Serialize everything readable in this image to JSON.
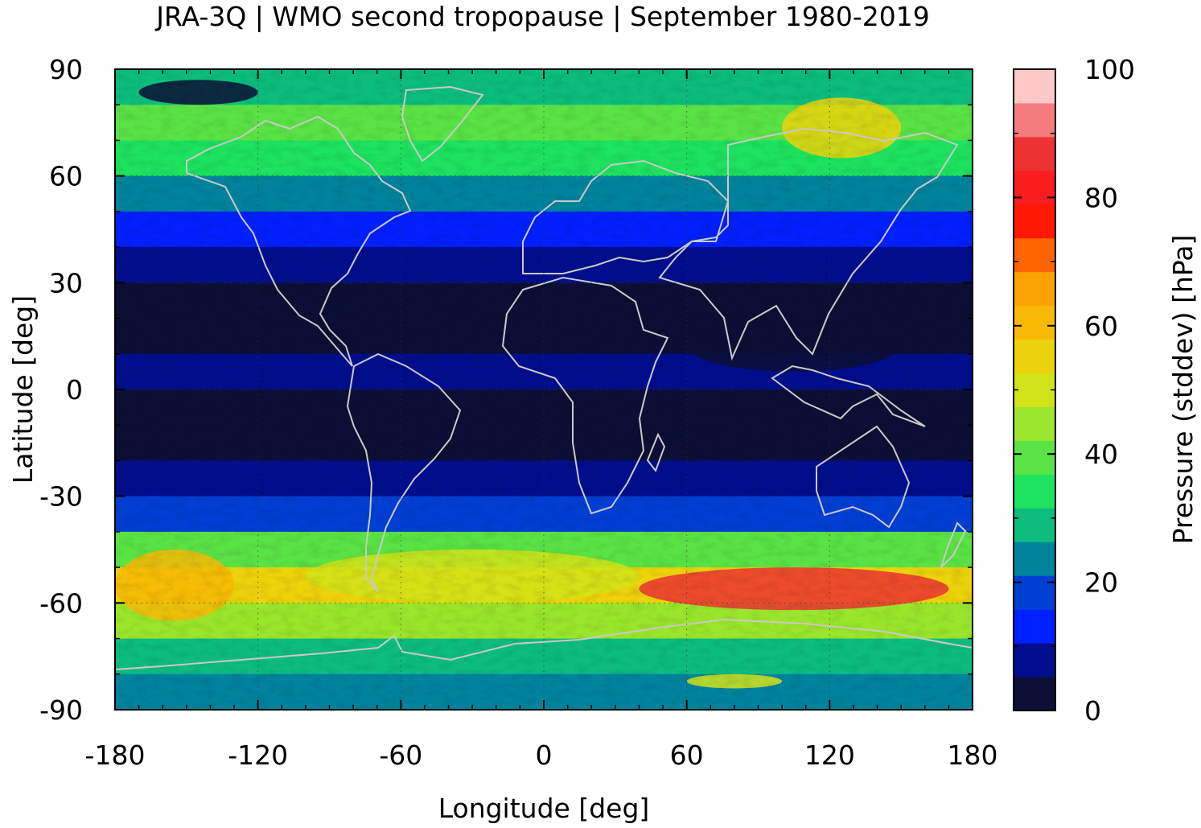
{
  "title": "JRA-3Q | WMO second tropopause | September 1980-2019",
  "map": {
    "x_axis": {
      "label": "Longitude [deg]",
      "range": [
        -180,
        180
      ],
      "ticks": [
        "-180",
        "-120",
        "-60",
        "0",
        "60",
        "120",
        "180"
      ],
      "tick_values": [
        -180,
        -120,
        -60,
        0,
        60,
        120,
        180
      ]
    },
    "y_axis": {
      "label": "Latitude [deg]",
      "range": [
        -90,
        90
      ],
      "ticks": [
        "90",
        "60",
        "30",
        "0",
        "-30",
        "-60",
        "-90"
      ],
      "tick_values": [
        90,
        60,
        30,
        0,
        -30,
        -60,
        -90
      ]
    },
    "grid": "dotted at 60° longitude / 30° latitude",
    "coastlines": true
  },
  "colorbar": {
    "label": "Pressure (stddev) [hPa]",
    "range": [
      0,
      100
    ],
    "ticks": [
      "100",
      "80",
      "60",
      "40",
      "20",
      "0"
    ],
    "tick_values": [
      100,
      80,
      60,
      40,
      20,
      0
    ],
    "colors": [
      "#0c0f35",
      "#000e8d",
      "#0020ff",
      "#003fd4",
      "#00849e",
      "#0cbd7e",
      "#1de35f",
      "#5ae345",
      "#9be62c",
      "#d2e319",
      "#ecd30c",
      "#f8b806",
      "#fba303",
      "#ff6400",
      "#ff1900",
      "#f81e1e",
      "#ec3232",
      "#f57c7c",
      "#ffc8c8"
    ]
  },
  "chart_data": {
    "type": "heatmap",
    "title": "JRA-3Q | WMO second tropopause | September 1980-2019",
    "xlabel": "Longitude [deg]",
    "ylabel": "Latitude [deg]",
    "xlim": [
      -180,
      180
    ],
    "ylim": [
      -90,
      90
    ],
    "colorbar_label": "Pressure (stddev) [hPa]",
    "colorbar_range": [
      0,
      100
    ],
    "zonal_profile_approx": {
      "latitude": [
        90,
        80,
        70,
        60,
        50,
        40,
        30,
        20,
        10,
        0,
        -10,
        -20,
        -30,
        -40,
        -50,
        -55,
        -60,
        -70,
        -80,
        -90
      ],
      "stddev_hPa": [
        20,
        40,
        40,
        30,
        15,
        8,
        5,
        4,
        6,
        5,
        3,
        4,
        10,
        30,
        50,
        60,
        55,
        35,
        25,
        25
      ]
    },
    "features": [
      "Southern Hemisphere band of maximum ~80-90 hPa near 50-60S, 40E-170E",
      "High variability patches in Arctic near 100E-140E, 65-80N",
      "Low values (<10 hPa) in subtropics and tropics"
    ]
  }
}
